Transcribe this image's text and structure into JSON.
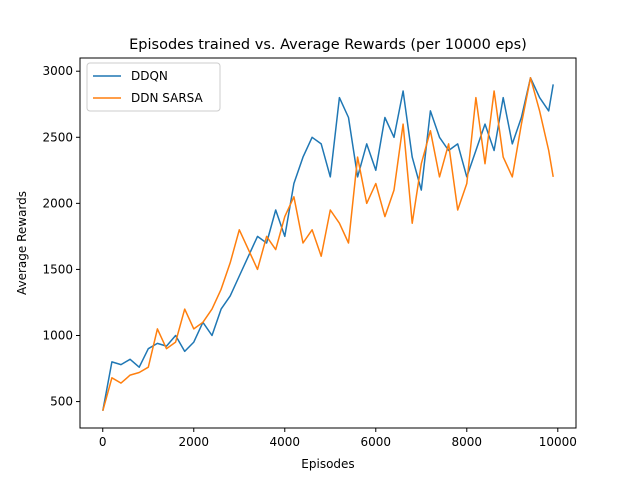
{
  "chart_data": {
    "type": "line",
    "title": "Episodes trained vs. Average Rewards (per 10000 eps)",
    "xlabel": "Episodes",
    "ylabel": "Average Rewards",
    "xlim": [
      -500,
      10400
    ],
    "ylim": [
      300,
      3100
    ],
    "xticks": [
      0,
      2000,
      4000,
      6000,
      8000,
      10000
    ],
    "yticks": [
      500,
      1000,
      1500,
      2000,
      2500,
      3000
    ],
    "grid": false,
    "legend_position": "top-left",
    "series": [
      {
        "name": "DDQN",
        "color": "#1f77b4",
        "x": [
          0,
          200,
          400,
          600,
          800,
          1000,
          1200,
          1400,
          1600,
          1800,
          2000,
          2200,
          2400,
          2600,
          2800,
          3000,
          3200,
          3400,
          3600,
          3800,
          4000,
          4200,
          4400,
          4600,
          4800,
          5000,
          5200,
          5400,
          5600,
          5800,
          6000,
          6200,
          6400,
          6600,
          6800,
          7000,
          7200,
          7400,
          7600,
          7800,
          8000,
          8200,
          8400,
          8600,
          8800,
          9000,
          9200,
          9400,
          9600,
          9800,
          9900
        ],
        "y": [
          430,
          800,
          780,
          820,
          760,
          900,
          940,
          920,
          1000,
          880,
          950,
          1100,
          1000,
          1200,
          1300,
          1450,
          1600,
          1750,
          1700,
          1950,
          1750,
          2150,
          2350,
          2500,
          2450,
          2200,
          2800,
          2650,
          2200,
          2450,
          2250,
          2650,
          2500,
          2850,
          2350,
          2100,
          2700,
          2500,
          2400,
          2450,
          2200,
          2400,
          2600,
          2400,
          2800,
          2450,
          2650,
          2950,
          2800,
          2700,
          2900
        ]
      },
      {
        "name": "DDN SARSA",
        "color": "#ff7f0e",
        "x": [
          0,
          200,
          400,
          600,
          800,
          1000,
          1200,
          1400,
          1600,
          1800,
          2000,
          2200,
          2400,
          2600,
          2800,
          3000,
          3200,
          3400,
          3600,
          3800,
          4000,
          4200,
          4400,
          4600,
          4800,
          5000,
          5200,
          5400,
          5600,
          5800,
          6000,
          6200,
          6400,
          6600,
          6800,
          7000,
          7200,
          7400,
          7600,
          7800,
          8000,
          8200,
          8400,
          8600,
          8800,
          9000,
          9200,
          9400,
          9600,
          9800,
          9900
        ],
        "y": [
          430,
          680,
          640,
          700,
          720,
          760,
          1050,
          900,
          950,
          1200,
          1050,
          1100,
          1200,
          1350,
          1550,
          1800,
          1650,
          1500,
          1750,
          1650,
          1900,
          2050,
          1700,
          1800,
          1600,
          1950,
          1850,
          1700,
          2350,
          2000,
          2150,
          1900,
          2100,
          2600,
          1850,
          2300,
          2550,
          2200,
          2450,
          1950,
          2150,
          2800,
          2300,
          2850,
          2350,
          2200,
          2600,
          2950,
          2700,
          2400,
          2200
        ]
      }
    ]
  }
}
